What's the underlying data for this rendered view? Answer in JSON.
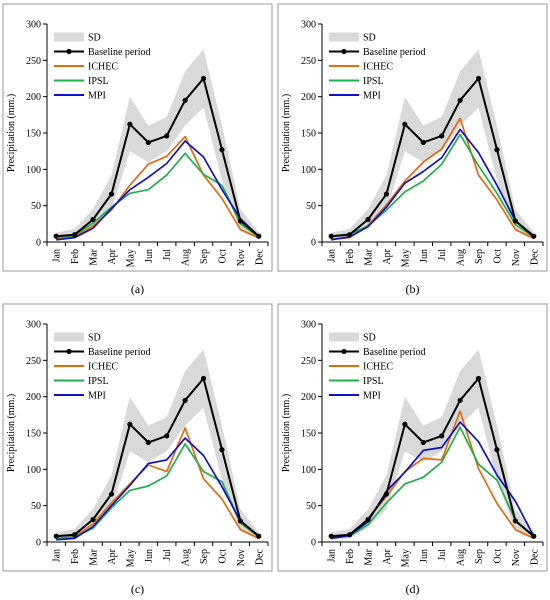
{
  "figure": {
    "panel_labels": [
      "(a)",
      "(b)",
      "(c)",
      "(d)"
    ]
  },
  "colors": {
    "sd_band": "#d9d9d9",
    "baseline": "#000000",
    "ICHEC": "#e36c0a",
    "IPSL": "#1fb04a",
    "MPI": "#1010c8"
  },
  "chart_data": [
    {
      "type": "line",
      "panel": "(a)",
      "ylabel": "Precipitation (mm.)",
      "xlabel": "",
      "ylim": [
        0,
        300
      ],
      "yticks": [
        0,
        50,
        100,
        150,
        200,
        250,
        300
      ],
      "categories": [
        "Jan",
        "Feb",
        "Mar",
        "Apr",
        "May",
        "Jun",
        "Jul",
        "Aug",
        "Sep",
        "Oct",
        "Nov",
        "Dec"
      ],
      "legend": [
        "SD",
        "Baseline period",
        "ICHEC",
        "IPSL",
        "MPI"
      ],
      "sd_band": {
        "name": "SD",
        "lower": [
          3,
          5,
          20,
          45,
          125,
          110,
          125,
          160,
          185,
          85,
          15,
          3
        ],
        "upper": [
          13,
          18,
          45,
          92,
          200,
          160,
          172,
          235,
          265,
          160,
          45,
          13
        ]
      },
      "series": [
        {
          "name": "Baseline period",
          "values": [
            8,
            10,
            31,
            66,
            162,
            137,
            146,
            195,
            225,
            127,
            29,
            8
          ]
        },
        {
          "name": "ICHEC",
          "values": [
            5,
            7,
            22,
            44,
            78,
            107,
            118,
            145,
            92,
            60,
            17,
            6
          ]
        },
        {
          "name": "IPSL",
          "values": [
            7,
            9,
            26,
            48,
            67,
            72,
            92,
            122,
            93,
            78,
            25,
            7
          ]
        },
        {
          "name": "MPI",
          "values": [
            3,
            6,
            19,
            46,
            72,
            89,
            108,
            139,
            117,
            72,
            32,
            8
          ]
        }
      ]
    },
    {
      "type": "line",
      "panel": "(b)",
      "ylabel": "Precipitation (mm.)",
      "xlabel": "",
      "ylim": [
        0,
        300
      ],
      "yticks": [
        0,
        50,
        100,
        150,
        200,
        250,
        300
      ],
      "categories": [
        "Jan",
        "Feb",
        "Mar",
        "Apr",
        "May",
        "Jun",
        "Jul",
        "Aug",
        "Sep",
        "Oct",
        "Nov",
        "Dec"
      ],
      "legend": [
        "SD",
        "Baseline period",
        "ICHEC",
        "IPSL",
        "MPI"
      ],
      "sd_band": {
        "name": "SD",
        "lower": [
          3,
          5,
          20,
          45,
          125,
          110,
          125,
          160,
          185,
          85,
          15,
          3
        ],
        "upper": [
          13,
          18,
          45,
          92,
          200,
          160,
          172,
          235,
          265,
          160,
          45,
          13
        ]
      },
      "series": [
        {
          "name": "Baseline period",
          "values": [
            8,
            10,
            31,
            66,
            162,
            137,
            146,
            195,
            225,
            127,
            29,
            8
          ]
        },
        {
          "name": "ICHEC",
          "values": [
            4,
            6,
            23,
            51,
            84,
            110,
            128,
            170,
            92,
            58,
            17,
            5
          ]
        },
        {
          "name": "IPSL",
          "values": [
            8,
            11,
            22,
            44,
            69,
            84,
            107,
            148,
            105,
            67,
            24,
            7
          ]
        },
        {
          "name": "MPI",
          "values": [
            3,
            7,
            21,
            48,
            81,
            97,
            116,
            155,
            123,
            78,
            29,
            7
          ]
        }
      ]
    },
    {
      "type": "line",
      "panel": "(c)",
      "ylabel": "Precipitation (mm.)",
      "xlabel": "",
      "ylim": [
        0,
        300
      ],
      "yticks": [
        0,
        50,
        100,
        150,
        200,
        250,
        300
      ],
      "categories": [
        "Jan",
        "Feb",
        "Mar",
        "Apr",
        "May",
        "Jun",
        "Jul",
        "Aug",
        "Sep",
        "Oct",
        "Nov",
        "Dec"
      ],
      "legend": [
        "SD",
        "Baseline period",
        "ICHEC",
        "IPSL",
        "MPI"
      ],
      "sd_band": {
        "name": "SD",
        "lower": [
          3,
          5,
          20,
          45,
          125,
          110,
          125,
          160,
          185,
          85,
          15,
          3
        ],
        "upper": [
          13,
          18,
          45,
          92,
          200,
          160,
          172,
          235,
          265,
          160,
          45,
          13
        ]
      },
      "series": [
        {
          "name": "Baseline period",
          "values": [
            8,
            10,
            31,
            66,
            162,
            137,
            146,
            195,
            225,
            127,
            29,
            8
          ]
        },
        {
          "name": "ICHEC",
          "values": [
            5,
            7,
            25,
            54,
            80,
            106,
            97,
            157,
            87,
            59,
            17,
            5
          ]
        },
        {
          "name": "IPSL",
          "values": [
            5,
            7,
            19,
            47,
            71,
            77,
            91,
            135,
            97,
            83,
            26,
            7
          ]
        },
        {
          "name": "MPI",
          "values": [
            3,
            5,
            21,
            50,
            78,
            108,
            113,
            143,
            119,
            76,
            29,
            8
          ]
        }
      ]
    },
    {
      "type": "line",
      "panel": "(d)",
      "ylabel": "Precipitation (mm.)",
      "xlabel": "",
      "ylim": [
        0,
        300
      ],
      "yticks": [
        0,
        50,
        100,
        150,
        200,
        250,
        300
      ],
      "categories": [
        "Jan",
        "Feb",
        "Mar",
        "Apr",
        "May",
        "Jun",
        "Jul",
        "Aug",
        "Sep",
        "Oct",
        "Nov",
        "Dec"
      ],
      "legend": [
        "SD",
        "Baseline period",
        "ICHEC",
        "IPSL",
        "MPI"
      ],
      "sd_band": {
        "name": "SD",
        "lower": [
          3,
          5,
          20,
          45,
          125,
          110,
          125,
          160,
          185,
          85,
          15,
          3
        ],
        "upper": [
          13,
          18,
          45,
          92,
          200,
          160,
          172,
          235,
          265,
          160,
          45,
          13
        ]
      },
      "series": [
        {
          "name": "Baseline period",
          "values": [
            8,
            10,
            31,
            66,
            162,
            137,
            146,
            195,
            225,
            127,
            29,
            8
          ]
        },
        {
          "name": "ICHEC",
          "values": [
            7,
            9,
            32,
            63,
            97,
            115,
            113,
            180,
            101,
            53,
            17,
            5
          ]
        },
        {
          "name": "IPSL",
          "values": [
            6,
            8,
            24,
            54,
            80,
            89,
            110,
            158,
            107,
            85,
            30,
            7
          ]
        },
        {
          "name": "MPI",
          "values": [
            5,
            9,
            28,
            70,
            96,
            126,
            130,
            165,
            138,
            92,
            56,
            8
          ]
        }
      ]
    }
  ]
}
